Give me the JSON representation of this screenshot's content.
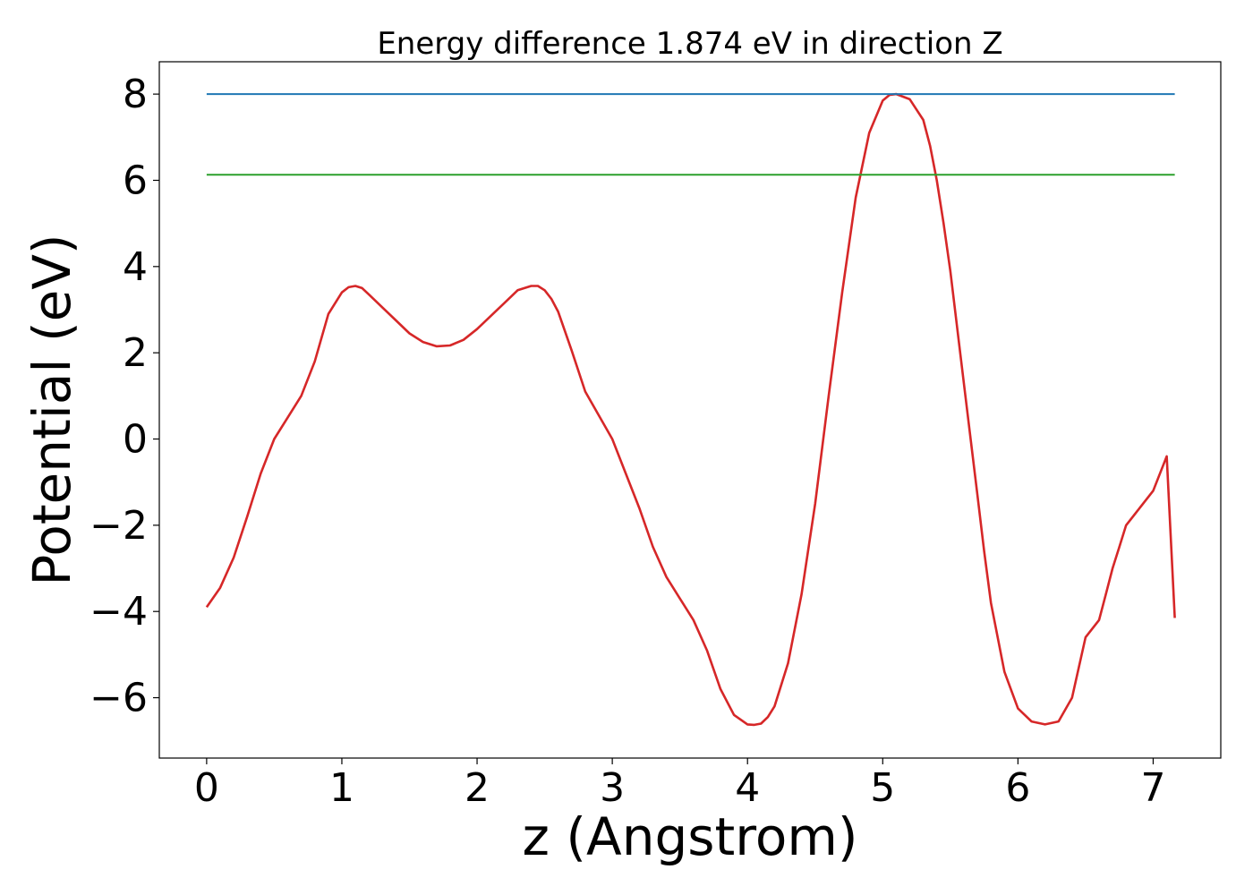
{
  "chart_data": {
    "type": "line",
    "title": "Energy difference 1.874 eV in direction Z",
    "xlabel": "z (Angstrom)",
    "ylabel": "Potential (eV)",
    "xlim": [
      -0.35,
      7.5
    ],
    "ylim": [
      -7.4,
      8.75
    ],
    "xticks": [
      0,
      1,
      2,
      3,
      4,
      5,
      6,
      7
    ],
    "yticks": [
      -6,
      -4,
      -2,
      0,
      2,
      4,
      6,
      8
    ],
    "grid": false,
    "series": [
      {
        "color": "#d62728",
        "x": [
          0,
          0.1,
          0.2,
          0.3,
          0.4,
          0.5,
          0.6,
          0.7,
          0.8,
          0.9,
          1.0,
          1.05,
          1.1,
          1.15,
          1.2,
          1.3,
          1.4,
          1.5,
          1.6,
          1.7,
          1.8,
          1.9,
          2.0,
          2.1,
          2.2,
          2.3,
          2.4,
          2.45,
          2.5,
          2.55,
          2.6,
          2.7,
          2.8,
          2.9,
          3.0,
          3.1,
          3.2,
          3.3,
          3.4,
          3.5,
          3.6,
          3.7,
          3.8,
          3.9,
          4.0,
          4.05,
          4.1,
          4.15,
          4.2,
          4.3,
          4.4,
          4.5,
          4.6,
          4.7,
          4.8,
          4.9,
          5.0,
          5.05,
          5.1,
          5.2,
          5.3,
          5.35,
          5.4,
          5.45,
          5.5,
          5.6,
          5.7,
          5.75,
          5.8,
          5.9,
          6.0,
          6.1,
          6.2,
          6.3,
          6.4,
          6.5,
          6.6,
          6.65,
          6.7,
          6.75,
          6.8,
          6.9,
          7.0,
          7.1,
          7.16
        ],
        "y": [
          -3.9,
          -3.45,
          -2.75,
          -1.8,
          -0.8,
          0.0,
          0.5,
          1.0,
          1.8,
          2.9,
          3.4,
          3.52,
          3.55,
          3.5,
          3.35,
          3.05,
          2.75,
          2.45,
          2.25,
          2.15,
          2.17,
          2.3,
          2.55,
          2.85,
          3.15,
          3.45,
          3.55,
          3.55,
          3.45,
          3.25,
          2.95,
          2.05,
          1.1,
          0.55,
          0.0,
          -0.8,
          -1.6,
          -2.5,
          -3.2,
          -3.7,
          -4.2,
          -4.9,
          -5.8,
          -6.4,
          -6.62,
          -6.63,
          -6.6,
          -6.45,
          -6.2,
          -5.2,
          -3.6,
          -1.5,
          1.0,
          3.4,
          5.6,
          7.1,
          7.85,
          7.98,
          8.0,
          7.88,
          7.4,
          6.8,
          6.0,
          5.0,
          3.9,
          1.3,
          -1.3,
          -2.6,
          -3.8,
          -5.4,
          -6.25,
          -6.55,
          -6.62,
          -6.55,
          -6.0,
          -4.6,
          -4.2,
          -3.6,
          -3.0,
          -2.5,
          -2.0,
          -1.6,
          -1.2,
          -0.4,
          -4.15
        ]
      },
      {
        "color": "#1f77b4",
        "x": [
          0,
          7.16
        ],
        "y": [
          8.0,
          8.0
        ]
      },
      {
        "color": "#2ca02c",
        "x": [
          0,
          7.16
        ],
        "y": [
          6.13,
          6.13
        ]
      }
    ]
  }
}
